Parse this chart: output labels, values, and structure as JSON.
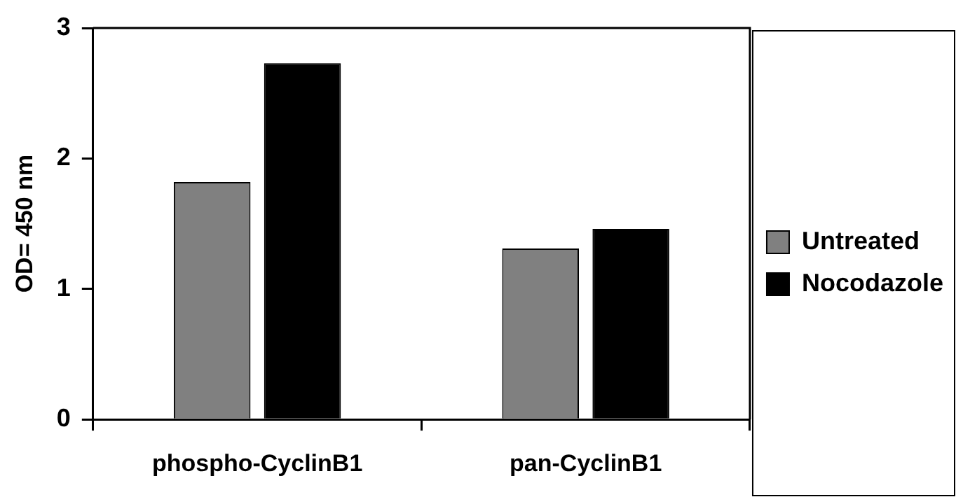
{
  "chart_data": {
    "type": "bar",
    "ylabel": "OD= 450 nm",
    "categories": [
      "phospho-CyclinB1",
      "pan-CyclinB1"
    ],
    "series": [
      {
        "name": "Untreated",
        "color": "#808080",
        "values": [
          1.82,
          1.31
        ]
      },
      {
        "name": "Nocodazole",
        "color": "#000000",
        "values": [
          2.73,
          1.46
        ]
      }
    ],
    "ylim": [
      0,
      3
    ],
    "yticks": [
      0,
      1,
      2,
      3
    ],
    "grid": false,
    "legend": "right"
  }
}
